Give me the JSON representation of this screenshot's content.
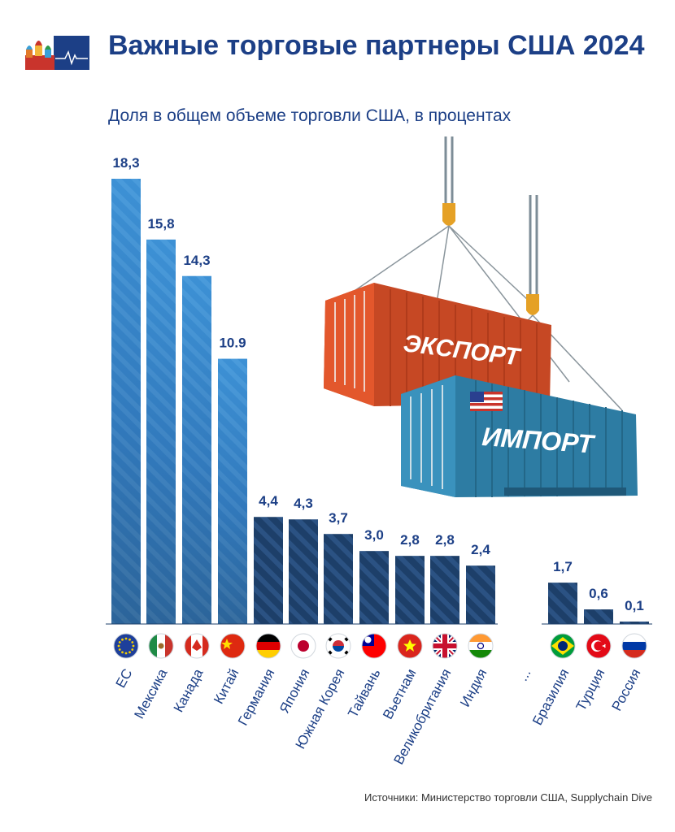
{
  "header": {
    "title": "Важные торговые партнеры США 2024",
    "subtitle": "Доля в общем объеме торговли США, в процентах"
  },
  "illustration": {
    "export_label": "ЭКСПОРТ",
    "import_label": "ИМПОРТ"
  },
  "footer": {
    "source": "Источники: Министерство торговли США, Supplychain Dive"
  },
  "chart_data": {
    "type": "bar",
    "title": "Важные торговые партнеры США 2024",
    "subtitle": "Доля в общем объеме торговли США, в процентах",
    "categories": [
      "ЕС",
      "Мексика",
      "Канада",
      "Китай",
      "Германия",
      "Япония",
      "Южная Корея",
      "Тайвань",
      "Вьетнам",
      "Великобритания",
      "Индия",
      "...",
      "Бразилия",
      "Турция",
      "Россия"
    ],
    "value_labels": [
      "18,3",
      "15,8",
      "14,3",
      "10.9",
      "4,4",
      "4,3",
      "3,7",
      "3,0",
      "2,8",
      "2,8",
      "2,4",
      null,
      "1,7",
      "0,6",
      "0,1"
    ],
    "values": [
      18.3,
      15.8,
      14.3,
      10.9,
      4.4,
      4.3,
      3.7,
      3.0,
      2.8,
      2.8,
      2.4,
      null,
      1.7,
      0.6,
      0.1
    ],
    "xlabel": "",
    "ylabel": "",
    "ylim": [
      0,
      18.3
    ],
    "grid": false,
    "colors": {
      "light_blue": "#3d91d5",
      "dark_blue": "#1d3f69",
      "text": "#1c3f86"
    }
  }
}
